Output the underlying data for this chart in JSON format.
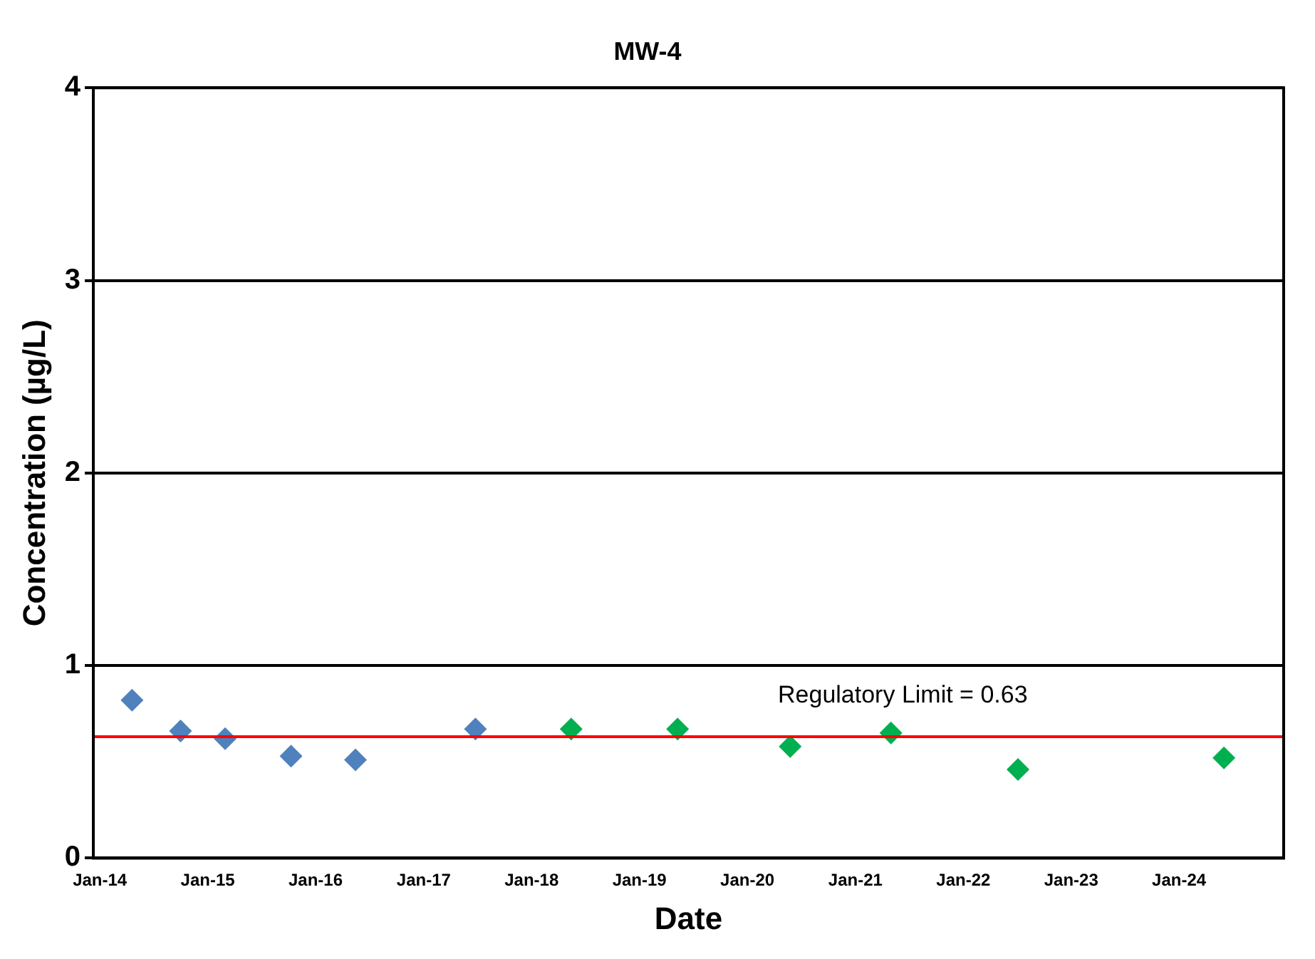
{
  "chart_data": {
    "type": "scatter",
    "title": "MW-4",
    "xlabel": "Date",
    "ylabel": "Concentration (µg/L)",
    "xlim": [
      "2013-12-10",
      "2024-12-20"
    ],
    "xticks": [
      {
        "value": "2014-01-01",
        "label": "Jan-14"
      },
      {
        "value": "2015-01-01",
        "label": "Jan-15"
      },
      {
        "value": "2016-01-01",
        "label": "Jan-16"
      },
      {
        "value": "2017-01-01",
        "label": "Jan-17"
      },
      {
        "value": "2018-01-01",
        "label": "Jan-18"
      },
      {
        "value": "2019-01-01",
        "label": "Jan-19"
      },
      {
        "value": "2020-01-01",
        "label": "Jan-20"
      },
      {
        "value": "2021-01-01",
        "label": "Jan-21"
      },
      {
        "value": "2022-01-01",
        "label": "Jan-22"
      },
      {
        "value": "2023-01-01",
        "label": "Jan-23"
      },
      {
        "value": "2024-01-01",
        "label": "Jan-24"
      }
    ],
    "ylim": [
      0,
      4
    ],
    "yticks": [
      0,
      1,
      2,
      3,
      4
    ],
    "grid": "y",
    "marker": "diamond",
    "series": [
      {
        "color": "#4f81bd",
        "x": [
          "2014-04-20",
          "2014-10-01",
          "2015-03-01",
          "2015-10-10",
          "2016-05-15",
          "2017-06-25"
        ],
        "values": [
          0.82,
          0.66,
          0.62,
          0.53,
          0.51,
          0.67
        ]
      },
      {
        "color": "#00b050",
        "x": [
          "2018-05-15",
          "2019-05-10",
          "2020-05-25",
          "2021-05-01",
          "2022-07-05",
          "2024-06-01"
        ],
        "values": [
          0.67,
          0.67,
          0.58,
          0.65,
          0.46,
          0.52
        ]
      }
    ],
    "ref_lines": [
      {
        "axis": "y",
        "value": 0.63,
        "label": "Regulatory Limit = 0.63",
        "color": "#ff0000"
      }
    ]
  }
}
